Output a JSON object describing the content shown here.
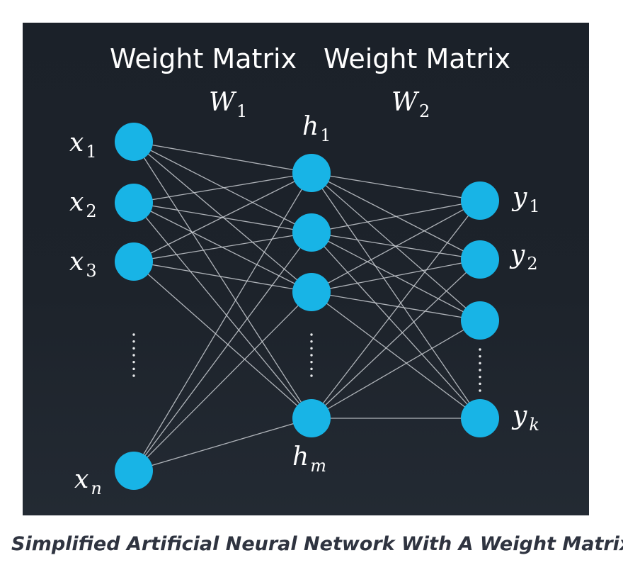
{
  "header": {
    "left_title": "Weight Matrix",
    "right_title": "Weight Matrix",
    "left_matrix_symbol": "W",
    "left_matrix_subscript": "1",
    "right_matrix_symbol": "W",
    "right_matrix_subscript": "2"
  },
  "input_layer": {
    "nodes": [
      {
        "symbol": "x",
        "subscript": "1"
      },
      {
        "symbol": "x",
        "subscript": "2"
      },
      {
        "symbol": "x",
        "subscript": "3"
      },
      {
        "symbol": "x",
        "subscript": "n"
      }
    ]
  },
  "hidden_layer": {
    "top_label_symbol": "h",
    "top_label_subscript": "1",
    "bottom_label_symbol": "h",
    "bottom_label_subscript": "m"
  },
  "output_layer": {
    "labels": [
      {
        "symbol": "y",
        "subscript": "1"
      },
      {
        "symbol": "y",
        "subscript": "2"
      },
      {
        "symbol": "y",
        "subscript": "k"
      }
    ]
  },
  "caption": "Simplified Artificial Neural Network With A Weight Matrix",
  "colors": {
    "node": "#18b4e6",
    "background": "#1d232b",
    "edge": "#c9cdd2",
    "text": "#ffffff",
    "caption": "#2f3440"
  }
}
